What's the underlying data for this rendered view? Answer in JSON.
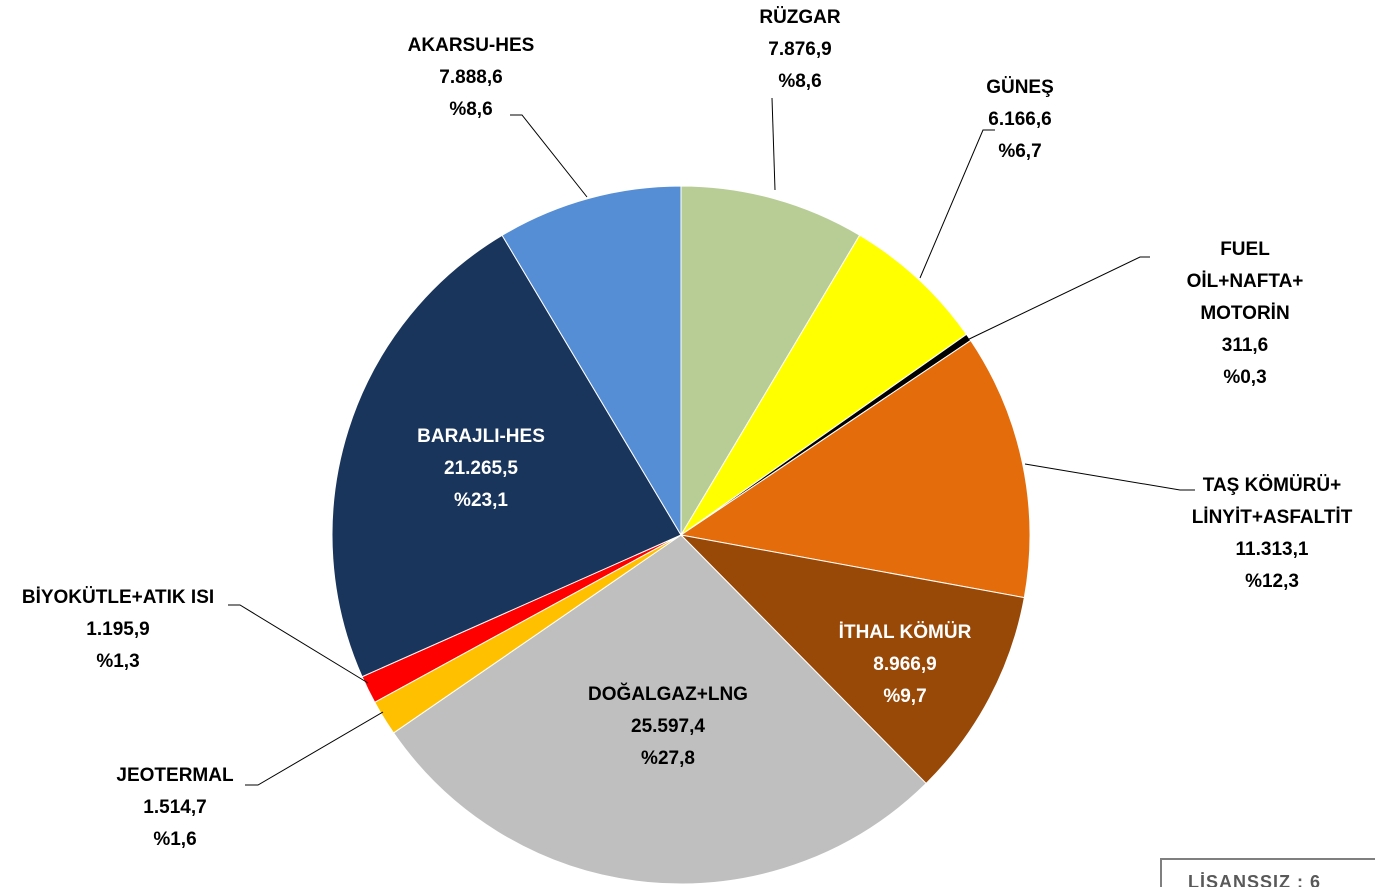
{
  "chart_data": {
    "type": "pie",
    "categories": [
      "RÜZGAR",
      "GÜNEŞ",
      "FUEL OİL+NAFTA+\nMOTORİN",
      "TAŞ KÖMÜRÜ+\nLİNYİT+ASFALTİT",
      "İTHAL KÖMÜR",
      "DOĞALGAZ+LNG",
      "JEOTERMAL",
      "BİYOKÜTLE+ATIK ISI",
      "BARAJLI-HES",
      "AKARSU-HES"
    ],
    "values": [
      7876.9,
      6166.6,
      311.6,
      11313.1,
      8966.9,
      25597.4,
      1514.7,
      1195.9,
      21265.5,
      7888.6
    ],
    "value_labels": [
      "7.876,9",
      "6.166,6",
      "311,6",
      "11.313,1",
      "8.966,9",
      "25.597,4",
      "1.514,7",
      "1.195,9",
      "21.265,5",
      "7.888,6"
    ],
    "percent_labels": [
      "%8,6",
      "%6,7",
      "%0,3",
      "%12,3",
      "%9,7",
      "%27,8",
      "%1,6",
      "%1,3",
      "%23,1",
      "%8,6"
    ],
    "colors": [
      "#b7cd95",
      "#ffff00",
      "#000000",
      "#e46c0a",
      "#984807",
      "#bfbfbf",
      "#ffc000",
      "#ff0000",
      "#1a355b",
      "#558ed5"
    ],
    "footer_note": "LİSANSSIZ : 6"
  }
}
